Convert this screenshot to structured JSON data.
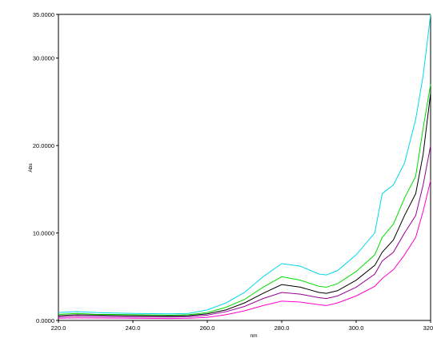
{
  "chart_data": {
    "type": "line",
    "title": "",
    "xlabel": "nm",
    "ylabel": "Abs",
    "xlim": [
      220.0,
      320.0
    ],
    "ylim": [
      0.0,
      35.0
    ],
    "x_ticks": [
      "220.0",
      "240.0",
      "260.0",
      "280.0",
      "300.0",
      "320.0"
    ],
    "x_tick_values": [
      220,
      240,
      260,
      280,
      300,
      320
    ],
    "y_ticks": [
      "0.0000",
      "10.0000",
      "20.0000",
      "30.0000",
      "35.0000"
    ],
    "y_tick_values": [
      0,
      10,
      20,
      30,
      35
    ],
    "grid": false,
    "legend": "none",
    "x": [
      220,
      225,
      230,
      240,
      250,
      255,
      260,
      265,
      270,
      275,
      280,
      285,
      290,
      292,
      295,
      300,
      305,
      307,
      310,
      313,
      316,
      318,
      320
    ],
    "series": [
      {
        "color": "#00d8e8",
        "values": [
          0.9,
          1.0,
          0.9,
          0.8,
          0.75,
          0.8,
          1.2,
          2.0,
          3.2,
          5.0,
          6.5,
          6.2,
          5.3,
          5.2,
          5.7,
          7.5,
          10.0,
          14.5,
          15.5,
          18.0,
          23.0,
          28.0,
          35.0
        ]
      },
      {
        "color": "#00dd00",
        "values": [
          0.7,
          0.8,
          0.7,
          0.65,
          0.6,
          0.65,
          0.9,
          1.5,
          2.4,
          3.8,
          5.0,
          4.6,
          3.9,
          3.8,
          4.2,
          5.6,
          7.5,
          9.5,
          11.0,
          14.0,
          16.5,
          22.0,
          27.0
        ]
      },
      {
        "color": "#000000",
        "values": [
          0.55,
          0.65,
          0.6,
          0.55,
          0.5,
          0.55,
          0.75,
          1.2,
          2.0,
          3.1,
          4.1,
          3.8,
          3.2,
          3.1,
          3.4,
          4.6,
          6.3,
          7.8,
          9.2,
          12.0,
          14.5,
          19.0,
          26.0
        ]
      },
      {
        "color": "#990099",
        "values": [
          0.4,
          0.5,
          0.45,
          0.4,
          0.38,
          0.42,
          0.6,
          1.0,
          1.6,
          2.5,
          3.2,
          3.0,
          2.6,
          2.5,
          2.8,
          3.8,
          5.3,
          6.8,
          7.8,
          10.0,
          12.0,
          15.5,
          20.0
        ]
      },
      {
        "color": "#ff00cc",
        "values": [
          0.25,
          0.3,
          0.28,
          0.25,
          0.22,
          0.25,
          0.35,
          0.65,
          1.1,
          1.7,
          2.2,
          2.1,
          1.8,
          1.7,
          2.0,
          2.8,
          3.9,
          4.8,
          5.8,
          7.5,
          9.5,
          12.5,
          16.0
        ]
      }
    ]
  }
}
